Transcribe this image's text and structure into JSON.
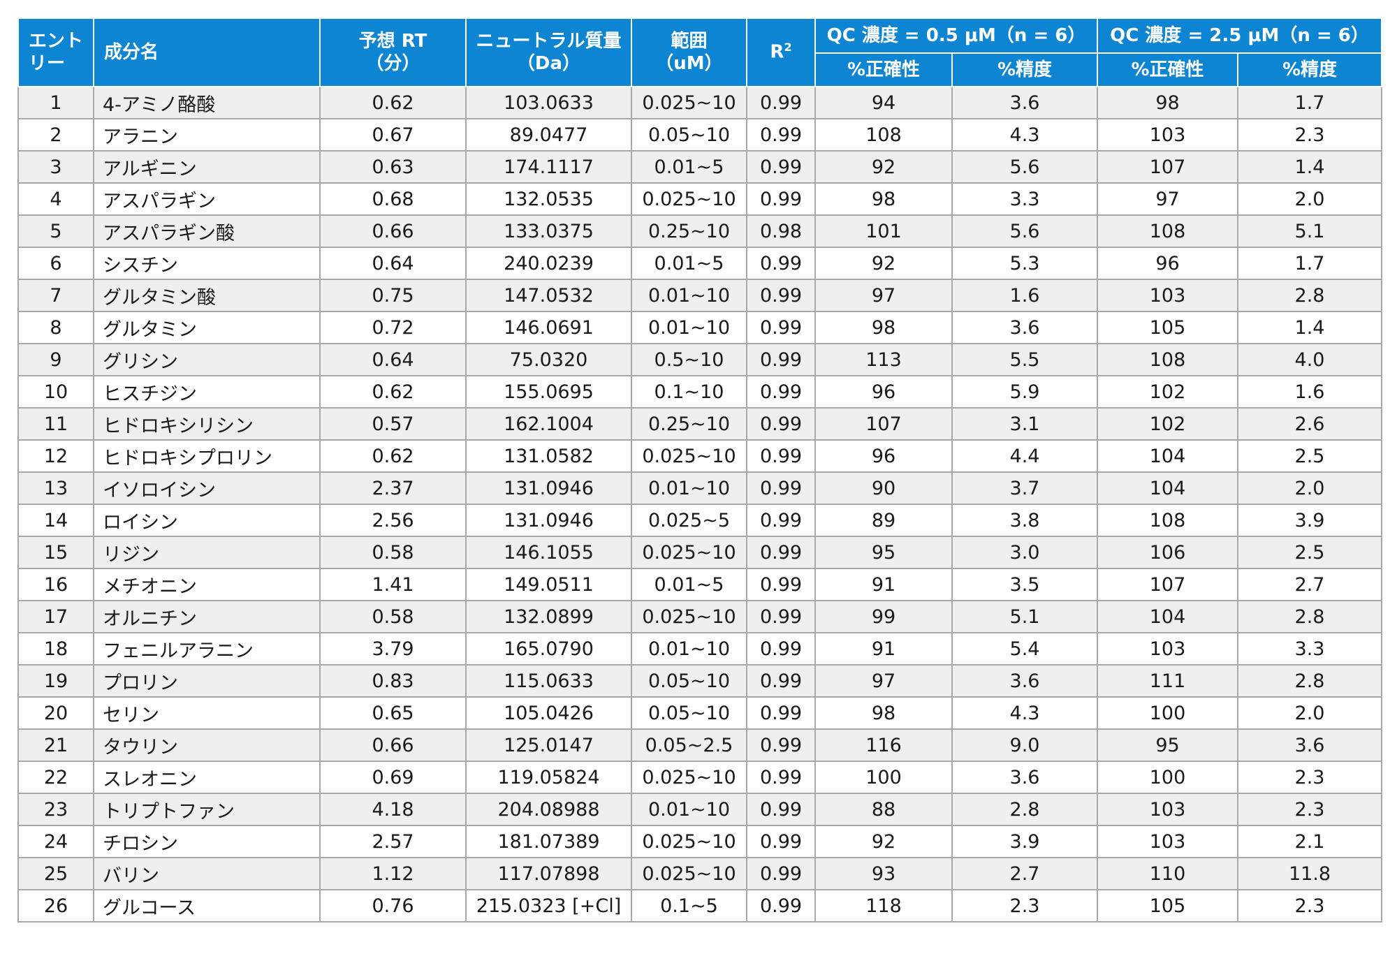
{
  "header": {
    "entry": [
      "エント",
      "リー"
    ],
    "name": "成分名",
    "rt": [
      "予想 RT",
      "（分）"
    ],
    "mass": [
      "ニュートラル質量",
      "（Da）"
    ],
    "range": [
      "範囲",
      "（uM）"
    ],
    "r2_base": "R",
    "r2_sup": "2",
    "qc1": "QC 濃度 = 0.5 μM（n = 6）",
    "qc2": "QC 濃度 = 2.5 μM（n = 6）",
    "accuracy": "%正確性",
    "precision": "%精度"
  },
  "rows": [
    {
      "entry": "1",
      "name": "4-アミノ酪酸",
      "rt": "0.62",
      "mass": "103.0633",
      "range": "0.025~10",
      "r2": "0.99",
      "acc1": "94",
      "prec1": "3.6",
      "acc2": "98",
      "prec2": "1.7"
    },
    {
      "entry": "2",
      "name": "アラニン",
      "rt": "0.67",
      "mass": "89.0477",
      "range": "0.05~10",
      "r2": "0.99",
      "acc1": "108",
      "prec1": "4.3",
      "acc2": "103",
      "prec2": "2.3"
    },
    {
      "entry": "3",
      "name": "アルギニン",
      "rt": "0.63",
      "mass": "174.1117",
      "range": "0.01~5",
      "r2": "0.99",
      "acc1": "92",
      "prec1": "5.6",
      "acc2": "107",
      "prec2": "1.4"
    },
    {
      "entry": "4",
      "name": "アスパラギン",
      "rt": "0.68",
      "mass": "132.0535",
      "range": "0.025~10",
      "r2": "0.99",
      "acc1": "98",
      "prec1": "3.3",
      "acc2": "97",
      "prec2": "2.0"
    },
    {
      "entry": "5",
      "name": "アスパラギン酸",
      "rt": "0.66",
      "mass": "133.0375",
      "range": "0.25~10",
      "r2": "0.98",
      "acc1": "101",
      "prec1": "5.6",
      "acc2": "108",
      "prec2": "5.1"
    },
    {
      "entry": "6",
      "name": "シスチン",
      "rt": "0.64",
      "mass": "240.0239",
      "range": "0.01~5",
      "r2": "0.99",
      "acc1": "92",
      "prec1": "5.3",
      "acc2": "96",
      "prec2": "1.7"
    },
    {
      "entry": "7",
      "name": "グルタミン酸",
      "rt": "0.75",
      "mass": "147.0532",
      "range": "0.01~10",
      "r2": "0.99",
      "acc1": "97",
      "prec1": "1.6",
      "acc2": "103",
      "prec2": "2.8"
    },
    {
      "entry": "8",
      "name": "グルタミン",
      "rt": "0.72",
      "mass": "146.0691",
      "range": "0.01~10",
      "r2": "0.99",
      "acc1": "98",
      "prec1": "3.6",
      "acc2": "105",
      "prec2": "1.4"
    },
    {
      "entry": "9",
      "name": "グリシン",
      "rt": "0.64",
      "mass": "75.0320",
      "range": "0.5~10",
      "r2": "0.99",
      "acc1": "113",
      "prec1": "5.5",
      "acc2": "108",
      "prec2": "4.0"
    },
    {
      "entry": "10",
      "name": "ヒスチジン",
      "rt": "0.62",
      "mass": "155.0695",
      "range": "0.1~10",
      "r2": "0.99",
      "acc1": "96",
      "prec1": "5.9",
      "acc2": "102",
      "prec2": "1.6"
    },
    {
      "entry": "11",
      "name": "ヒドロキシリシン",
      "rt": "0.57",
      "mass": "162.1004",
      "range": "0.25~10",
      "r2": "0.99",
      "acc1": "107",
      "prec1": "3.1",
      "acc2": "102",
      "prec2": "2.6"
    },
    {
      "entry": "12",
      "name": "ヒドロキシプロリン",
      "rt": "0.62",
      "mass": "131.0582",
      "range": "0.025~10",
      "r2": "0.99",
      "acc1": "96",
      "prec1": "4.4",
      "acc2": "104",
      "prec2": "2.5"
    },
    {
      "entry": "13",
      "name": "イソロイシン",
      "rt": "2.37",
      "mass": "131.0946",
      "range": "0.01~10",
      "r2": "0.99",
      "acc1": "90",
      "prec1": "3.7",
      "acc2": "104",
      "prec2": "2.0"
    },
    {
      "entry": "14",
      "name": "ロイシン",
      "rt": "2.56",
      "mass": "131.0946",
      "range": "0.025~5",
      "r2": "0.99",
      "acc1": "89",
      "prec1": "3.8",
      "acc2": "108",
      "prec2": "3.9"
    },
    {
      "entry": "15",
      "name": "リジン",
      "rt": "0.58",
      "mass": "146.1055",
      "range": "0.025~10",
      "r2": "0.99",
      "acc1": "95",
      "prec1": "3.0",
      "acc2": "106",
      "prec2": "2.5"
    },
    {
      "entry": "16",
      "name": "メチオニン",
      "rt": "1.41",
      "mass": "149.0511",
      "range": "0.01~5",
      "r2": "0.99",
      "acc1": "91",
      "prec1": "3.5",
      "acc2": "107",
      "prec2": "2.7"
    },
    {
      "entry": "17",
      "name": "オルニチン",
      "rt": "0.58",
      "mass": "132.0899",
      "range": "0.025~10",
      "r2": "0.99",
      "acc1": "99",
      "prec1": "5.1",
      "acc2": "104",
      "prec2": "2.8"
    },
    {
      "entry": "18",
      "name": "フェニルアラニン",
      "rt": "3.79",
      "mass": "165.0790",
      "range": "0.01~10",
      "r2": "0.99",
      "acc1": "91",
      "prec1": "5.4",
      "acc2": "103",
      "prec2": "3.3"
    },
    {
      "entry": "19",
      "name": "プロリン",
      "rt": "0.83",
      "mass": "115.0633",
      "range": "0.05~10",
      "r2": "0.99",
      "acc1": "97",
      "prec1": "3.6",
      "acc2": "111",
      "prec2": "2.8"
    },
    {
      "entry": "20",
      "name": "セリン",
      "rt": "0.65",
      "mass": "105.0426",
      "range": "0.05~10",
      "r2": "0.99",
      "acc1": "98",
      "prec1": "4.3",
      "acc2": "100",
      "prec2": "2.0"
    },
    {
      "entry": "21",
      "name": "タウリン",
      "rt": "0.66",
      "mass": "125.0147",
      "range": "0.05~2.5",
      "r2": "0.99",
      "acc1": "116",
      "prec1": "9.0",
      "acc2": "95",
      "prec2": "3.6"
    },
    {
      "entry": "22",
      "name": "スレオニン",
      "rt": "0.69",
      "mass": "119.05824",
      "range": "0.025~10",
      "r2": "0.99",
      "acc1": "100",
      "prec1": "3.6",
      "acc2": "100",
      "prec2": "2.3"
    },
    {
      "entry": "23",
      "name": "トリプトファン",
      "rt": "4.18",
      "mass": "204.08988",
      "range": "0.01~10",
      "r2": "0.99",
      "acc1": "88",
      "prec1": "2.8",
      "acc2": "103",
      "prec2": "2.3"
    },
    {
      "entry": "24",
      "name": "チロシン",
      "rt": "2.57",
      "mass": "181.07389",
      "range": "0.025~10",
      "r2": "0.99",
      "acc1": "92",
      "prec1": "3.9",
      "acc2": "103",
      "prec2": "2.1"
    },
    {
      "entry": "25",
      "name": "バリン",
      "rt": "1.12",
      "mass": "117.07898",
      "range": "0.025~10",
      "r2": "0.99",
      "acc1": "93",
      "prec1": "2.7",
      "acc2": "110",
      "prec2": "11.8"
    },
    {
      "entry": "26",
      "name": "グルコース",
      "rt": "0.76",
      "mass": "215.0323 [+Cl]",
      "range": "0.1~5",
      "r2": "0.99",
      "acc1": "118",
      "prec1": "2.3",
      "acc2": "105",
      "prec2": "2.3"
    }
  ]
}
